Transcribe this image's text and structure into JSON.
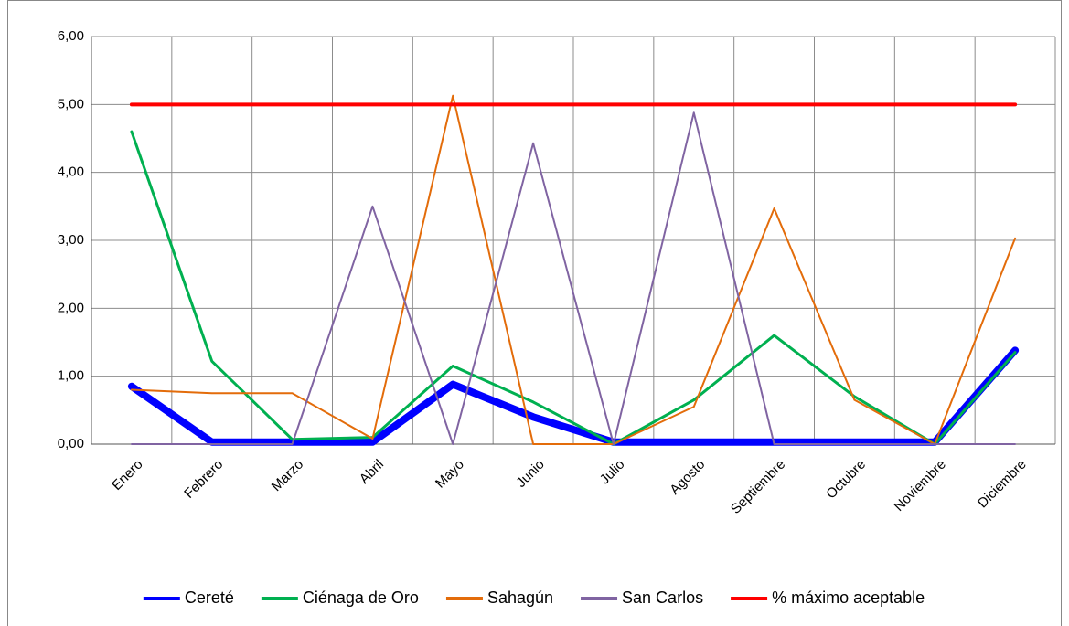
{
  "chart_data": {
    "type": "line",
    "categories": [
      "Enero",
      "Febrero",
      "Marzo",
      "Abril",
      "Mayo",
      "Junio",
      "Julio",
      "Agosto",
      "Septiembre",
      "Octubre",
      "Noviembre",
      "Diciembre"
    ],
    "series": [
      {
        "name": "Cereté",
        "color": "#0000ff",
        "width": 8,
        "values": [
          0.85,
          0.03,
          0.03,
          0.03,
          0.88,
          0.4,
          0.03,
          0.03,
          0.03,
          0.03,
          0.03,
          1.38
        ]
      },
      {
        "name": "Ciénaga de Oro",
        "color": "#00b050",
        "width": 3,
        "values": [
          4.6,
          1.22,
          0.07,
          0.1,
          1.15,
          0.62,
          0,
          0.65,
          1.6,
          0.7,
          0,
          1.35
        ]
      },
      {
        "name": "Sahagún",
        "color": "#e36c0a",
        "width": 2,
        "values": [
          0.8,
          0.75,
          0.75,
          0.08,
          5.13,
          0,
          0,
          0.55,
          3.47,
          0.65,
          0,
          3.03
        ]
      },
      {
        "name": "San Carlos",
        "color": "#8064a2",
        "width": 2,
        "values": [
          0,
          0,
          0,
          3.5,
          0,
          4.43,
          0,
          4.88,
          0,
          0,
          0,
          0
        ]
      },
      {
        "name": "% máximo aceptable",
        "color": "#ff0000",
        "width": 4,
        "values": [
          5,
          5,
          5,
          5,
          5,
          5,
          5,
          5,
          5,
          5,
          5,
          5
        ]
      }
    ],
    "ylim": [
      0,
      6
    ],
    "yticks": [
      {
        "value": 0,
        "label": "0,00"
      },
      {
        "value": 1,
        "label": "1,00"
      },
      {
        "value": 2,
        "label": "2,00"
      },
      {
        "value": 3,
        "label": "3,00"
      },
      {
        "value": 4,
        "label": "4,00"
      },
      {
        "value": 5,
        "label": "5,00"
      },
      {
        "value": 6,
        "label": "6,00"
      }
    ],
    "grid": true,
    "legend": "bottom"
  }
}
